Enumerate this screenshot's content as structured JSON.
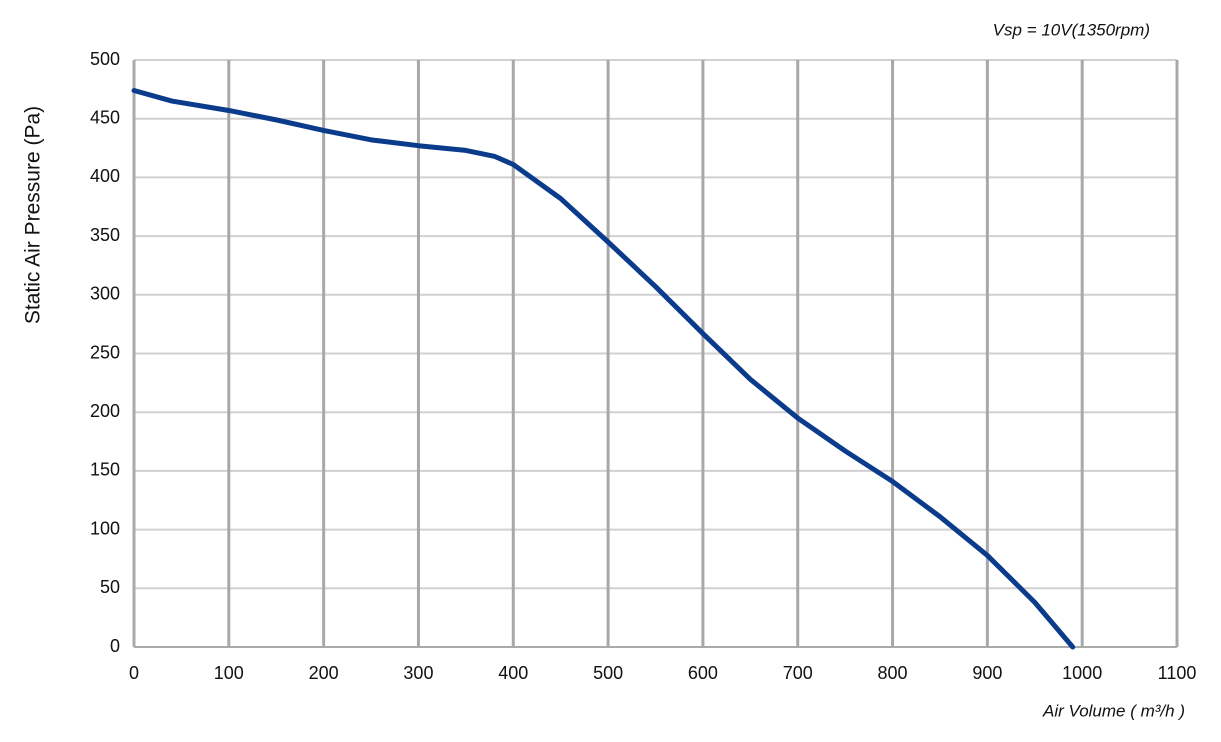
{
  "chart_data": {
    "type": "line",
    "title": "Vsp = 10V(1350rpm)",
    "x_label": "Air Volume ( m³/h )",
    "y_label": "Static Air Pressure  (Pa)",
    "x": [
      0,
      40,
      100,
      150,
      200,
      250,
      300,
      350,
      380,
      400,
      450,
      500,
      550,
      600,
      650,
      700,
      750,
      800,
      850,
      900,
      950,
      990
    ],
    "series": [
      {
        "name": "Vsp = 10V",
        "color": "#0b3c8c",
        "values": [
          474,
          465,
          457,
          449,
          440,
          432,
          427,
          423,
          418,
          411,
          382,
          345,
          307,
          267,
          228,
          195,
          167,
          141,
          111,
          78,
          38,
          0
        ]
      }
    ],
    "xlim": [
      0,
      1100
    ],
    "xticks": [
      0,
      100,
      200,
      300,
      400,
      500,
      600,
      700,
      800,
      900,
      1000,
      1100
    ],
    "ylim": [
      0,
      500
    ],
    "yticks": [
      0,
      50,
      100,
      150,
      200,
      250,
      300,
      350,
      400,
      450,
      500
    ],
    "grid": true
  }
}
